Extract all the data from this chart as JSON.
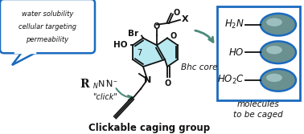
{
  "bg_color": "#ffffff",
  "bubble_text": [
    "water solubility",
    "cellular targeting",
    "permeability"
  ],
  "bubble_color": "#1a6abf",
  "bubble_fill": "#ffffff",
  "coumarin_fill": "#b8e8f0",
  "box_color": "#1a6abf",
  "label_bottom_left": "Clickable caging group",
  "label_bottom_right": "molecules\nto be caged",
  "bhc_label": "Bhc core",
  "arrow_color": "#4d8a7a",
  "ellipse_fill_outer": "#6a9090",
  "ellipse_fill_inner": "#aecece",
  "ellipse_stroke": "#1a6abf",
  "bond_color": "#111111",
  "figsize": [
    3.78,
    1.67
  ],
  "dpi": 100
}
